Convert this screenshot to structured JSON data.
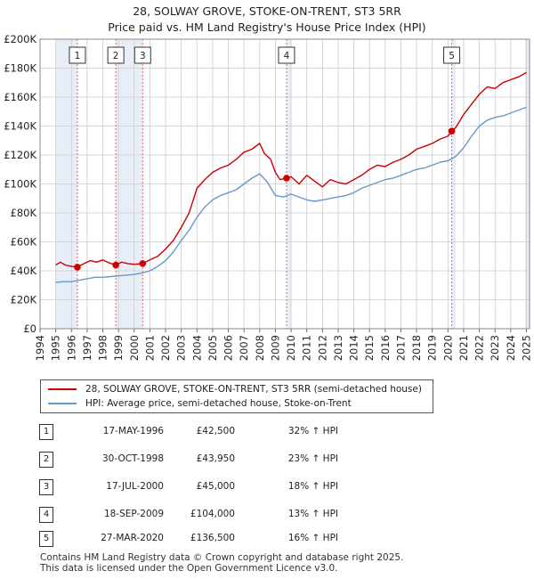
{
  "title": {
    "line1": "28, SOLWAY GROVE, STOKE-ON-TRENT, ST3 5RR",
    "line2": "Price paid vs. HM Land Registry's House Price Index (HPI)"
  },
  "legend": {
    "property_label": "28, SOLWAY GROVE, STOKE-ON-TRENT, ST3 5RR (semi-detached house)",
    "hpi_label": "HPI: Average price, semi-detached house, Stoke-on-Trent"
  },
  "colors": {
    "property": "#cc0000",
    "hpi": "#6699cc",
    "shade": "#e8eef8",
    "marker_line": "#e06666",
    "grid": "#cccccc"
  },
  "sales": [
    {
      "num": "1",
      "date": "17-MAY-1996",
      "price": "£42,500",
      "hpi": "32% ↑ HPI"
    },
    {
      "num": "2",
      "date": "30-OCT-1998",
      "price": "£43,950",
      "hpi": "23% ↑ HPI"
    },
    {
      "num": "3",
      "date": "17-JUL-2000",
      "price": "£45,000",
      "hpi": "18% ↑ HPI"
    },
    {
      "num": "4",
      "date": "18-SEP-2009",
      "price": "£104,000",
      "hpi": "13% ↑ HPI"
    },
    {
      "num": "5",
      "date": "27-MAR-2020",
      "price": "£136,500",
      "hpi": "16% ↑ HPI"
    }
  ],
  "footer": {
    "line1": "Contains HM Land Registry data © Crown copyright and database right 2025.",
    "line2": "This data is licensed under the Open Government Licence v3.0."
  },
  "chart_data": {
    "type": "line",
    "title": "28, SOLWAY GROVE, STOKE-ON-TRENT, ST3 5RR — Price paid vs. HM Land Registry's House Price Index (HPI)",
    "xlabel": "",
    "ylabel": "",
    "xlim": [
      1994,
      2025.2
    ],
    "ylim": [
      0,
      200000
    ],
    "x_ticks": [
      "1994",
      "1995",
      "1996",
      "1997",
      "1998",
      "1999",
      "2000",
      "2001",
      "2002",
      "2003",
      "2004",
      "2005",
      "2006",
      "2007",
      "2008",
      "2009",
      "2010",
      "2011",
      "2012",
      "2013",
      "2014",
      "2015",
      "2016",
      "2017",
      "2018",
      "2019",
      "2020",
      "2021",
      "2022",
      "2023",
      "2024",
      "2025"
    ],
    "y_ticks": [
      {
        "value": 0,
        "label": "£0"
      },
      {
        "value": 20000,
        "label": "£20K"
      },
      {
        "value": 40000,
        "label": "£40K"
      },
      {
        "value": 60000,
        "label": "£60K"
      },
      {
        "value": 80000,
        "label": "£80K"
      },
      {
        "value": 100000,
        "label": "£100K"
      },
      {
        "value": 120000,
        "label": "£120K"
      },
      {
        "value": 140000,
        "label": "£140K"
      },
      {
        "value": 160000,
        "label": "£160K"
      },
      {
        "value": 180000,
        "label": "£180K"
      },
      {
        "value": 200000,
        "label": "£200K"
      }
    ],
    "shaded_ranges": [
      [
        1995.0,
        1996.38
      ],
      [
        1998.83,
        2000.54
      ],
      [
        2009.71,
        2010.0
      ],
      [
        2020.24,
        2020.5
      ],
      [
        2024.9,
        2025.2
      ]
    ],
    "sale_markers": [
      {
        "label": "1",
        "x": 1996.38,
        "y": 42500
      },
      {
        "label": "2",
        "x": 1998.83,
        "y": 43950
      },
      {
        "label": "3",
        "x": 2000.54,
        "y": 45000
      },
      {
        "label": "4",
        "x": 2009.71,
        "y": 104000
      },
      {
        "label": "5",
        "x": 2020.24,
        "y": 136500
      }
    ],
    "series": [
      {
        "name": "28, SOLWAY GROVE, STOKE-ON-TRENT, ST3 5RR (semi-detached house)",
        "x": [
          1995.0,
          1995.3,
          1995.6,
          1996.0,
          1996.38,
          1996.8,
          1997.2,
          1997.6,
          1998.0,
          1998.4,
          1998.83,
          1999.2,
          1999.6,
          2000.0,
          2000.54,
          2001.0,
          2001.5,
          2002.0,
          2002.5,
          2003.0,
          2003.5,
          2004.0,
          2004.5,
          2005.0,
          2005.5,
          2006.0,
          2006.5,
          2007.0,
          2007.5,
          2008.0,
          2008.3,
          2008.7,
          2009.0,
          2009.3,
          2009.71,
          2010.0,
          2010.5,
          2011.0,
          2011.5,
          2012.0,
          2012.5,
          2013.0,
          2013.5,
          2014.0,
          2014.5,
          2015.0,
          2015.5,
          2016.0,
          2016.5,
          2017.0,
          2017.5,
          2018.0,
          2018.5,
          2019.0,
          2019.5,
          2020.0,
          2020.24,
          2020.5,
          2021.0,
          2021.5,
          2022.0,
          2022.5,
          2023.0,
          2023.5,
          2024.0,
          2024.5,
          2025.0
        ],
        "values": [
          44000,
          46000,
          44000,
          43000,
          42500,
          45000,
          47000,
          46000,
          47500,
          45500,
          43950,
          46000,
          45000,
          44500,
          45000,
          47500,
          50000,
          55000,
          61000,
          70000,
          80000,
          97000,
          103000,
          108000,
          111000,
          113000,
          117000,
          122000,
          124000,
          128000,
          121000,
          117000,
          108000,
          103000,
          104000,
          105000,
          100000,
          106000,
          102000,
          98000,
          103000,
          101000,
          100000,
          103000,
          106000,
          110000,
          113000,
          112000,
          115000,
          117000,
          120000,
          124000,
          126000,
          128000,
          131000,
          133000,
          136500,
          139000,
          148000,
          155000,
          162000,
          167000,
          166000,
          170000,
          172000,
          174000,
          177000
        ]
      },
      {
        "name": "HPI: Average price, semi-detached house, Stoke-on-Trent",
        "x": [
          1995.0,
          1995.5,
          1996.0,
          1996.5,
          1997.0,
          1997.5,
          1998.0,
          1998.5,
          1999.0,
          1999.5,
          2000.0,
          2000.5,
          2001.0,
          2001.5,
          2002.0,
          2002.5,
          2003.0,
          2003.5,
          2004.0,
          2004.5,
          2005.0,
          2005.5,
          2006.0,
          2006.5,
          2007.0,
          2007.5,
          2008.0,
          2008.5,
          2009.0,
          2009.5,
          2010.0,
          2010.5,
          2011.0,
          2011.5,
          2012.0,
          2012.5,
          2013.0,
          2013.5,
          2014.0,
          2014.5,
          2015.0,
          2015.5,
          2016.0,
          2016.5,
          2017.0,
          2017.5,
          2018.0,
          2018.5,
          2019.0,
          2019.5,
          2020.0,
          2020.5,
          2021.0,
          2021.5,
          2022.0,
          2022.5,
          2023.0,
          2023.5,
          2024.0,
          2024.5,
          2025.0
        ],
        "values": [
          32000,
          32500,
          32500,
          33500,
          34500,
          35500,
          35500,
          36000,
          36500,
          37000,
          37500,
          38500,
          40000,
          43000,
          47000,
          53000,
          61000,
          68000,
          77000,
          84000,
          89000,
          92000,
          94000,
          96000,
          100000,
          104000,
          107000,
          101000,
          92000,
          91000,
          93000,
          91000,
          89000,
          88000,
          89000,
          90000,
          91000,
          92000,
          94000,
          97000,
          99000,
          101000,
          103000,
          104000,
          106000,
          108000,
          110000,
          111000,
          113000,
          115000,
          116000,
          119000,
          125000,
          133000,
          140000,
          144000,
          146000,
          147000,
          149000,
          151000,
          153000
        ]
      }
    ]
  }
}
